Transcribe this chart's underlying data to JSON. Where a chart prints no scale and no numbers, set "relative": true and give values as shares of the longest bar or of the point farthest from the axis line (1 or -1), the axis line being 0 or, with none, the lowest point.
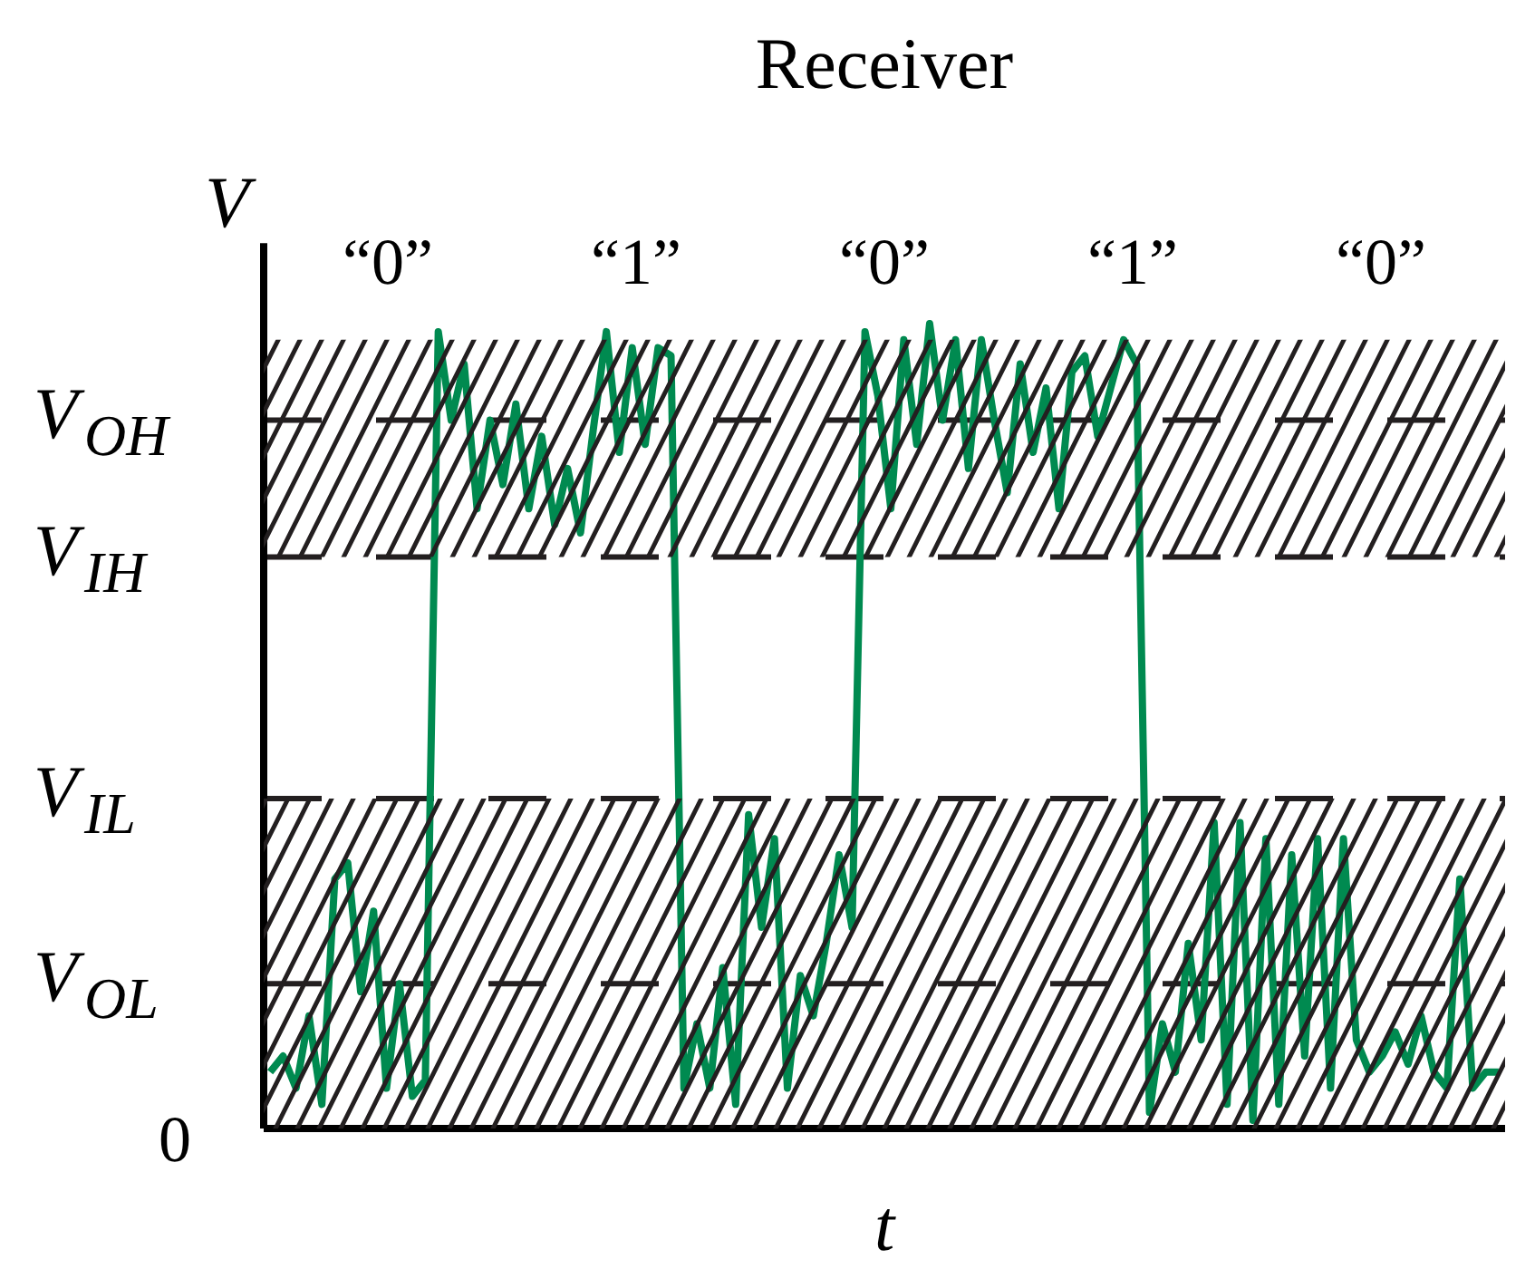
{
  "chart_data": {
    "type": "line",
    "title": "Receiver",
    "xlabel": "t",
    "ylabel": "V",
    "relative": true,
    "grid": false,
    "line_style": "solid",
    "marker": "none",
    "categories": [
      null,
      null,
      null,
      null,
      null,
      null,
      null,
      null,
      null,
      null,
      null,
      null,
      null,
      null,
      null,
      null,
      null,
      null,
      null,
      null,
      null,
      null,
      null,
      null,
      null,
      null,
      null,
      null,
      null,
      null,
      null,
      null,
      null,
      null,
      null,
      null,
      null,
      null,
      null,
      null,
      null,
      null,
      null,
      null,
      null,
      null,
      null,
      null,
      null,
      null,
      null,
      null,
      null,
      null,
      null,
      null,
      null,
      null,
      null,
      null,
      null,
      null,
      null,
      null,
      null,
      null,
      null,
      null,
      null,
      null,
      null,
      null,
      null,
      null,
      null,
      null,
      null,
      null,
      null,
      null,
      null,
      null,
      null,
      null,
      null,
      null,
      null,
      null,
      null,
      null,
      null,
      null,
      null,
      null,
      null,
      null
    ],
    "series": [
      {
        "color": "#008a50",
        "values": [
          0.07,
          0.09,
          0.05,
          0.14,
          0.03,
          0.31,
          0.33,
          0.17,
          0.27,
          0.05,
          0.18,
          0.04,
          0.06,
          0.99,
          0.88,
          0.95,
          0.77,
          0.88,
          0.8,
          0.9,
          0.77,
          0.86,
          0.75,
          0.82,
          0.74,
          0.87,
          0.99,
          0.84,
          0.97,
          0.85,
          0.97,
          0.96,
          0.05,
          0.13,
          0.05,
          0.2,
          0.03,
          0.39,
          0.25,
          0.36,
          0.05,
          0.19,
          0.14,
          0.23,
          0.34,
          0.25,
          0.99,
          0.91,
          0.77,
          0.98,
          0.85,
          1.0,
          0.88,
          0.98,
          0.82,
          0.98,
          0.88,
          0.79,
          0.95,
          0.84,
          0.92,
          0.77,
          0.94,
          0.96,
          0.86,
          0.92,
          0.98,
          0.95,
          0.02,
          0.13,
          0.07,
          0.23,
          0.11,
          0.38,
          0.03,
          0.38,
          0.01,
          0.36,
          0.03,
          0.34,
          0.09,
          0.36,
          0.05,
          0.36,
          0.11,
          0.07,
          0.09,
          0.12,
          0.08,
          0.14,
          0.07,
          0.05,
          0.31,
          0.05,
          0.07,
          0.07
        ]
      }
    ],
    "ref_lines": [
      {
        "axis": "y",
        "value": 0.88,
        "label": "V$_{OH}$",
        "line_style": "dashed",
        "color": "#231f20"
      },
      {
        "axis": "y",
        "value": 0.71,
        "label": "V$_{IH}$",
        "line_style": "dashed",
        "color": "#231f20"
      },
      {
        "axis": "y",
        "value": 0.41,
        "label": "V$_{IL}$",
        "line_style": "dashed",
        "color": "#231f20"
      },
      {
        "axis": "y",
        "value": 0.18,
        "label": "V$_{OL}$",
        "line_style": "dashed",
        "color": "#231f20"
      }
    ],
    "bands": [
      {
        "axis": "y",
        "from": 0.71,
        "to": 0.98,
        "color": "#231f20"
      },
      {
        "axis": "y",
        "from": 0,
        "to": 0.41,
        "color": "#231f20"
      }
    ],
    "annotations": [
      "“0”",
      "“1”",
      "“0”",
      "“1”",
      "“0”",
      "0"
    ]
  }
}
